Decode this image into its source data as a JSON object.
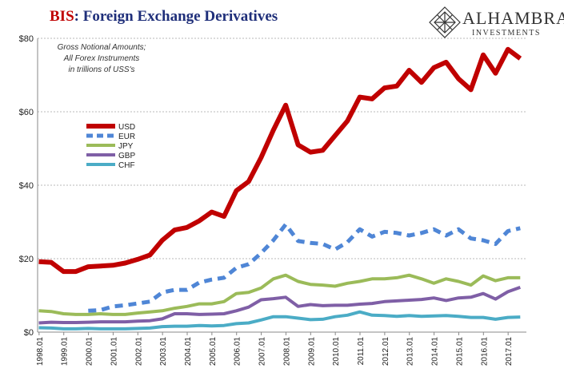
{
  "title": {
    "brand": "BIS",
    "rest": ": Foreign Exchange Derivatives"
  },
  "logo": {
    "name": "ALHAMBRA",
    "sub": "INVESTMENTS",
    "icon": "diamond-lattice-icon"
  },
  "annotation": [
    "Gross Notional Amounts;",
    "All Forex Instruments",
    "in trillions of USS's"
  ],
  "chart_data": {
    "type": "line",
    "ylim": [
      0,
      80
    ],
    "yticks": [
      "$0",
      "$20",
      "$40",
      "$60",
      "$80"
    ],
    "ytick_values": [
      0,
      20,
      40,
      60,
      80
    ],
    "xticks": [
      "1998.01",
      "1999.01",
      "2000.01",
      "2001.01",
      "2002.01",
      "2003.01",
      "2004.01",
      "2005.01",
      "2006.01",
      "2007.01",
      "2008.01",
      "2009.01",
      "2010.01",
      "2011.01",
      "2012.01",
      "2013.01",
      "2014.01",
      "2015.01",
      "2016.01",
      "2017.01"
    ],
    "x": [
      1998.0,
      1998.5,
      1999.0,
      1999.5,
      2000.0,
      2000.5,
      2001.0,
      2001.5,
      2002.0,
      2002.5,
      2003.0,
      2003.5,
      2004.0,
      2004.5,
      2005.0,
      2005.5,
      2006.0,
      2006.5,
      2007.0,
      2007.5,
      2008.0,
      2008.5,
      2009.0,
      2009.5,
      2010.0,
      2010.5,
      2011.0,
      2011.5,
      2012.0,
      2012.5,
      2013.0,
      2013.5,
      2014.0,
      2014.5,
      2015.0,
      2015.5,
      2016.0,
      2016.5,
      2017.0,
      2017.5
    ],
    "grid": true,
    "legend_position": "upper-left",
    "series": [
      {
        "name": "USD",
        "color": "#c00000",
        "width": 6,
        "dash": "",
        "values": [
          19.2,
          19.0,
          16.5,
          16.5,
          17.8,
          18.0,
          18.2,
          18.8,
          19.8,
          21.0,
          25.0,
          27.8,
          28.5,
          30.3,
          32.7,
          31.5,
          38.5,
          41.0,
          47.5,
          55.0,
          61.8,
          51.0,
          49.0,
          49.5,
          53.5,
          57.5,
          64.0,
          63.5,
          66.5,
          67.0,
          71.3,
          68.0,
          72.0,
          73.5,
          69.0,
          66.0,
          75.5,
          70.5,
          77.0,
          74.5
        ]
      },
      {
        "name": "EUR",
        "color": "#4f86d6",
        "width": 5,
        "dash": "10,7",
        "values": [
          null,
          null,
          null,
          null,
          5.8,
          6.0,
          7.0,
          7.3,
          7.8,
          8.3,
          10.8,
          11.5,
          11.5,
          13.5,
          14.3,
          14.8,
          17.5,
          18.5,
          21.5,
          25.0,
          29.3,
          24.8,
          24.3,
          24.0,
          22.5,
          24.5,
          28.0,
          26.0,
          27.3,
          27.0,
          26.3,
          27.0,
          28.0,
          26.3,
          28.0,
          25.5,
          25.0,
          24.0,
          27.5,
          28.3
        ]
      },
      {
        "name": "JPY",
        "color": "#9bbb59",
        "width": 4,
        "dash": "",
        "values": [
          5.8,
          5.6,
          5.0,
          4.8,
          4.8,
          5.0,
          4.8,
          4.8,
          5.2,
          5.5,
          5.8,
          6.5,
          7.0,
          7.7,
          7.7,
          8.3,
          10.5,
          10.8,
          12.0,
          14.5,
          15.5,
          13.8,
          13.0,
          12.8,
          12.5,
          13.3,
          13.8,
          14.5,
          14.5,
          14.8,
          15.5,
          14.5,
          13.3,
          14.5,
          13.8,
          12.8,
          15.3,
          14.0,
          14.8,
          14.8
        ]
      },
      {
        "name": "GBP",
        "color": "#7f5fa6",
        "width": 4,
        "dash": "",
        "values": [
          2.5,
          2.7,
          2.6,
          2.6,
          2.7,
          2.8,
          2.8,
          2.8,
          3.0,
          3.1,
          3.6,
          5.0,
          5.0,
          4.8,
          4.9,
          5.0,
          5.8,
          6.8,
          8.8,
          9.1,
          9.5,
          7.0,
          7.5,
          7.2,
          7.3,
          7.3,
          7.6,
          7.8,
          8.3,
          8.5,
          8.7,
          8.9,
          9.3,
          8.6,
          9.3,
          9.5,
          10.5,
          9.0,
          11.0,
          12.2
        ]
      },
      {
        "name": "CHF",
        "color": "#4bacc6",
        "width": 4,
        "dash": "",
        "values": [
          1.2,
          1.1,
          0.9,
          0.9,
          1.0,
          0.9,
          0.9,
          0.9,
          1.0,
          1.1,
          1.5,
          1.6,
          1.6,
          1.8,
          1.7,
          1.8,
          2.3,
          2.5,
          3.3,
          4.2,
          4.2,
          3.8,
          3.4,
          3.5,
          4.2,
          4.6,
          5.5,
          4.6,
          4.5,
          4.3,
          4.5,
          4.3,
          4.4,
          4.5,
          4.3,
          4.0,
          4.0,
          3.5,
          4.0,
          4.1
        ]
      }
    ]
  }
}
